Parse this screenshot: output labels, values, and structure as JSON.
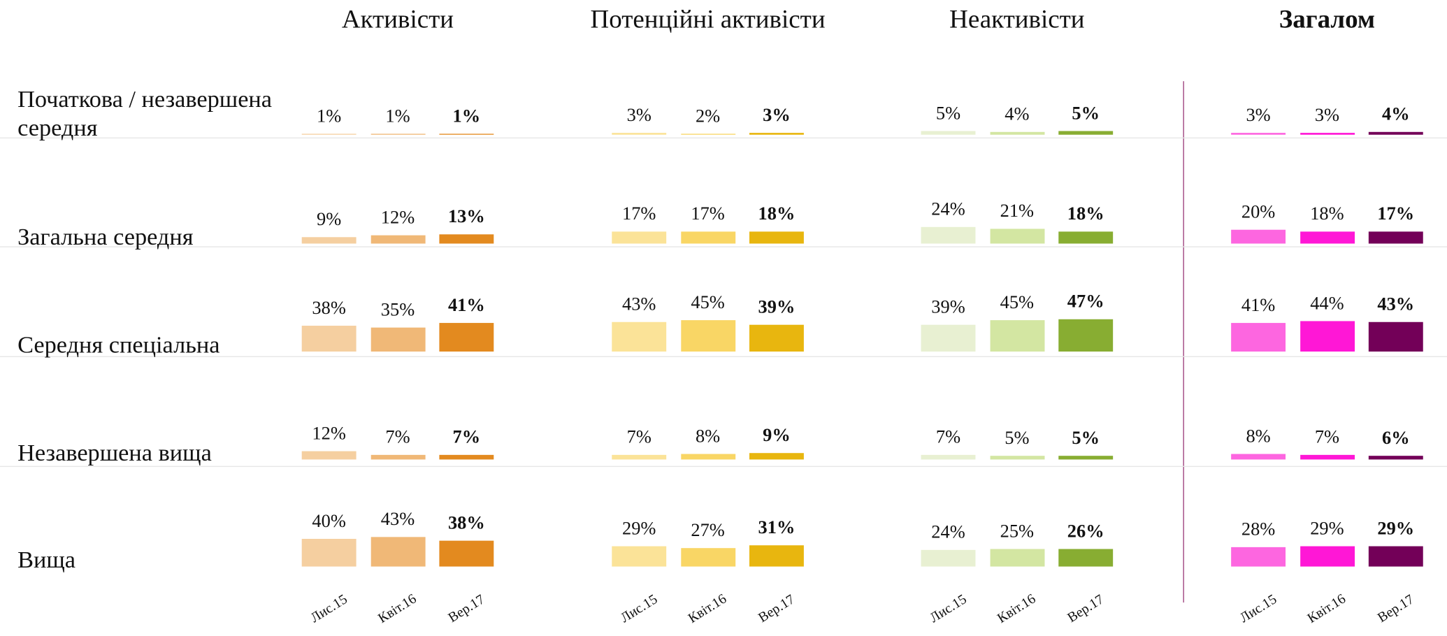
{
  "chart_data": [
    {
      "type": "bar",
      "title": "Активісти",
      "categories": [
        "Початкова / незавершена середня",
        "Загальна середня",
        "Середня спеціальна",
        "Незавершена  вища",
        "Вища"
      ],
      "series": [
        {
          "name": "Лис.15",
          "color": "#f5cfa0",
          "values": [
            1,
            9,
            38,
            12,
            40
          ],
          "value_labels": [
            "1%",
            "9%",
            "38%",
            "12%",
            "40%"
          ]
        },
        {
          "name": "Квіт.16",
          "color": "#f0b877",
          "values": [
            1,
            12,
            35,
            7,
            43
          ],
          "value_labels": [
            "1%",
            "12%",
            "35%",
            "7%",
            "43%"
          ]
        },
        {
          "name": "Вер.17",
          "color": "#e38a1f",
          "values": [
            1,
            13,
            41,
            7,
            38
          ],
          "value_labels": [
            "1%",
            "13%",
            "41%",
            "7%",
            "38%"
          ]
        }
      ]
    },
    {
      "type": "bar",
      "title": "Потенційні активісти",
      "series": [
        {
          "name": "Лис.15",
          "color": "#fbe398",
          "values": [
            3,
            17,
            43,
            7,
            29
          ],
          "value_labels": [
            "3%",
            "17%",
            "43%",
            "7%",
            "29%"
          ]
        },
        {
          "name": "Квіт.16",
          "color": "#f9d665",
          "values": [
            2,
            17,
            45,
            8,
            27
          ],
          "value_labels": [
            "2%",
            "17%",
            "45%",
            "8%",
            "27%"
          ]
        },
        {
          "name": "Вер.17",
          "color": "#e8b60f",
          "values": [
            3,
            18,
            39,
            9,
            31
          ],
          "value_labels": [
            "3%",
            "18%",
            "39%",
            "9%",
            "31%"
          ]
        }
      ]
    },
    {
      "type": "bar",
      "title": "Неактивісти",
      "series": [
        {
          "name": "Лис.15",
          "color": "#e8f0d2",
          "values": [
            5,
            24,
            39,
            7,
            24
          ],
          "value_labels": [
            "5%",
            "24%",
            "39%",
            "7%",
            "24%"
          ]
        },
        {
          "name": "Квіт.16",
          "color": "#d3e6a2",
          "values": [
            4,
            21,
            45,
            5,
            25
          ],
          "value_labels": [
            "4%",
            "21%",
            "45%",
            "5%",
            "25%"
          ]
        },
        {
          "name": "Вер.17",
          "color": "#88ad32",
          "values": [
            5,
            18,
            47,
            5,
            26
          ],
          "value_labels": [
            "5%",
            "18%",
            "47%",
            "5%",
            "26%"
          ]
        }
      ]
    },
    {
      "type": "bar",
      "title": "Загалом",
      "series": [
        {
          "name": "Лис.15",
          "color": "#fd66e0",
          "values": [
            3,
            20,
            41,
            8,
            28
          ],
          "value_labels": [
            "3%",
            "20%",
            "41%",
            "8%",
            "28%"
          ]
        },
        {
          "name": "Квіт.16",
          "color": "#ff17d6",
          "values": [
            3,
            18,
            44,
            7,
            29
          ],
          "value_labels": [
            "3%",
            "18%",
            "44%",
            "7%",
            "29%"
          ]
        },
        {
          "name": "Вер.17",
          "color": "#730058",
          "values": [
            4,
            17,
            43,
            6,
            29
          ],
          "value_labels": [
            "4%",
            "17%",
            "43%",
            "6%",
            "29%"
          ]
        }
      ]
    }
  ]
}
